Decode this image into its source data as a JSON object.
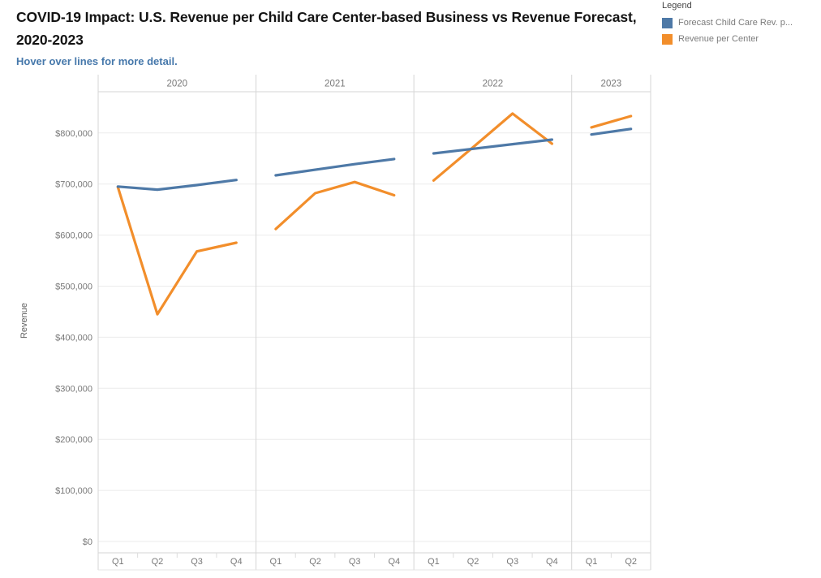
{
  "header": {
    "title": "COVID-19 Impact: U.S. Revenue per Child Care Center-based Business vs Revenue Forecast, 2020-2023",
    "subtitle": "Hover over lines for more detail."
  },
  "legend": {
    "title": "Legend",
    "items": [
      {
        "label": "Forecast Child Care Rev. p...",
        "color": "#4e79a7"
      },
      {
        "label": "Revenue per Center",
        "color": "#f28e2b"
      }
    ]
  },
  "chart_data": {
    "type": "line",
    "title": "COVID-19 Impact: U.S. Revenue per Child Care Center-based Business vs Revenue Forecast, 2020-2023",
    "subtitle": "Hover over lines for more detail.",
    "xlabel": "",
    "ylabel": "Revenue",
    "currency_prefix": "$",
    "ylim": [
      0,
      880000
    ],
    "y_ticks": [
      0,
      100000,
      200000,
      300000,
      400000,
      500000,
      600000,
      700000,
      800000
    ],
    "grid": true,
    "legend_position": "top-right",
    "panels": [
      {
        "year": "2020",
        "quarters": [
          "Q1",
          "Q2",
          "Q3",
          "Q4"
        ]
      },
      {
        "year": "2021",
        "quarters": [
          "Q1",
          "Q2",
          "Q3",
          "Q4"
        ]
      },
      {
        "year": "2022",
        "quarters": [
          "Q1",
          "Q2",
          "Q3",
          "Q4"
        ]
      },
      {
        "year": "2023",
        "quarters": [
          "Q1",
          "Q2"
        ]
      }
    ],
    "series": [
      {
        "name": "Forecast Child Care Rev. p...",
        "key": "forecast",
        "color": "#4e79a7",
        "values_by_year": {
          "2020": [
            695000,
            689000,
            698000,
            708000
          ],
          "2021": [
            717000,
            728000,
            739000,
            749000
          ],
          "2022": [
            760000,
            769000,
            778000,
            787000
          ],
          "2023": [
            797000,
            808000
          ]
        }
      },
      {
        "name": "Revenue per Center",
        "key": "revenue",
        "color": "#f28e2b",
        "values_by_year": {
          "2020": [
            694000,
            445000,
            568000,
            585000
          ],
          "2021": [
            612000,
            682000,
            704000,
            678000
          ],
          "2022": [
            707000,
            772000,
            838000,
            779000
          ],
          "2023": [
            811000,
            833000
          ]
        }
      }
    ]
  },
  "colors": {
    "grid_line": "#ebebeb",
    "panel_border": "#d6d6d6",
    "band_border": "#e4e4e4",
    "quarter_tick": "#dcdcdc",
    "tick_text": "#787878",
    "axis_title_text": "#5f5f5f",
    "title_text": "#141414",
    "subtitle_text": "#4678ab"
  }
}
